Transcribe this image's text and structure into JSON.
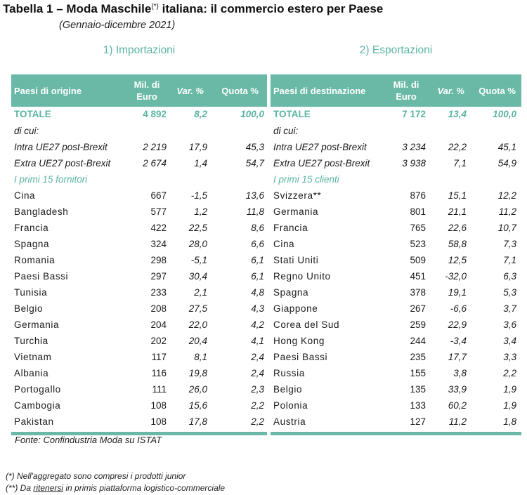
{
  "title": {
    "main": "Tabella 1 – Moda Maschile",
    "sup": "(*)",
    "rest": " italiana: il commercio estero per Paese"
  },
  "subtitle": "(Gennaio-dicembre 2021)",
  "imports": {
    "heading": "1) Importazioni",
    "columns": {
      "country": "Paesi di origine",
      "mil1": "Mil. di",
      "mil2": "Euro",
      "var": "Var. %",
      "quota": "Quota %"
    },
    "total": {
      "label": "TOTALE",
      "mil": "4 892",
      "var": "8,2",
      "quota": "100,0"
    },
    "of_which": "di cui:",
    "groups": [
      {
        "label": "Intra UE27 post-Brexit",
        "mil": "2 219",
        "var": "17,9",
        "quota": "45,3"
      },
      {
        "label": "Extra UE27 post-Brexit",
        "mil": "2 674",
        "var": "1,4",
        "quota": "54,7"
      }
    ],
    "top_label": "I primi 15 fornitori",
    "rows": [
      {
        "country": "Cina",
        "mil": "667",
        "var": "-1,5",
        "quota": "13,6"
      },
      {
        "country": "Bangladesh",
        "mil": "577",
        "var": "1,2",
        "quota": "11,8"
      },
      {
        "country": "Francia",
        "mil": "422",
        "var": "22,5",
        "quota": "8,6"
      },
      {
        "country": "Spagna",
        "mil": "324",
        "var": "28,0",
        "quota": "6,6"
      },
      {
        "country": "Romania",
        "mil": "298",
        "var": "-5,1",
        "quota": "6,1"
      },
      {
        "country": "Paesi  Bassi",
        "mil": "297",
        "var": "30,4",
        "quota": "6,1"
      },
      {
        "country": "Tunisia",
        "mil": "233",
        "var": "2,1",
        "quota": "4,8"
      },
      {
        "country": "Belgio",
        "mil": "208",
        "var": "27,5",
        "quota": "4,3"
      },
      {
        "country": "Germania",
        "mil": "204",
        "var": "22,0",
        "quota": "4,2"
      },
      {
        "country": "Turchia",
        "mil": "202",
        "var": "20,4",
        "quota": "4,1"
      },
      {
        "country": "Vietnam",
        "mil": "117",
        "var": "8,1",
        "quota": "2,4"
      },
      {
        "country": "Albania",
        "mil": "116",
        "var": "19,8",
        "quota": "2,4"
      },
      {
        "country": "Portogallo",
        "mil": "111",
        "var": "26,0",
        "quota": "2,3"
      },
      {
        "country": "Cambogia",
        "mil": "108",
        "var": "15,6",
        "quota": "2,2"
      },
      {
        "country": "Pakistan",
        "mil": "108",
        "var": "17,8",
        "quota": "2,2"
      }
    ]
  },
  "exports": {
    "heading": "2) Esportazioni",
    "columns": {
      "country": "Paesi di destinazione",
      "mil1": "Mil. di",
      "mil2": "Euro",
      "var": "Var. %",
      "quota": "Quota %"
    },
    "total": {
      "label": "TOTALE",
      "mil": "7 172",
      "var": "13,4",
      "quota": "100,0"
    },
    "of_which": "di cui:",
    "groups": [
      {
        "label": "Intra UE27 post-Brexit",
        "mil": "3 234",
        "var": "22,2",
        "quota": "45,1"
      },
      {
        "label": "Extra UE27 post-Brexit",
        "mil": "3 938",
        "var": "7,1",
        "quota": "54,9"
      }
    ],
    "top_label": "I primi 15 clienti",
    "rows": [
      {
        "country": "Svizzera**",
        "mil": "876",
        "var": "15,1",
        "quota": "12,2"
      },
      {
        "country": "Germania",
        "mil": "801",
        "var": "21,1",
        "quota": "11,2"
      },
      {
        "country": "Francia",
        "mil": "765",
        "var": "22,6",
        "quota": "10,7"
      },
      {
        "country": "Cina",
        "mil": "523",
        "var": "58,8",
        "quota": "7,3"
      },
      {
        "country": "Stati Uniti",
        "mil": "509",
        "var": "12,5",
        "quota": "7,1"
      },
      {
        "country": "Regno Unito",
        "mil": "451",
        "var": "-32,0",
        "quota": "6,3"
      },
      {
        "country": "Spagna",
        "mil": "378",
        "var": "19,1",
        "quota": "5,3"
      },
      {
        "country": "Giappone",
        "mil": "267",
        "var": "-6,6",
        "quota": "3,7"
      },
      {
        "country": "Corea del Sud",
        "mil": "259",
        "var": "22,9",
        "quota": "3,6"
      },
      {
        "country": "Hong Kong",
        "mil": "244",
        "var": "-3,4",
        "quota": "3,4"
      },
      {
        "country": "Paesi  Bassi",
        "mil": "235",
        "var": "17,7",
        "quota": "3,3"
      },
      {
        "country": "Russia",
        "mil": "155",
        "var": "3,8",
        "quota": "2,2"
      },
      {
        "country": "Belgio",
        "mil": "135",
        "var": "33,9",
        "quota": "1,9"
      },
      {
        "country": "Polonia",
        "mil": "133",
        "var": "60,2",
        "quota": "1,9"
      },
      {
        "country": "Austria",
        "mil": "127",
        "var": "11,2",
        "quota": "1,8"
      }
    ]
  },
  "source": "Fonte:  Confindustria Moda su ISTAT",
  "notes": {
    "n1": "(*) Nell'aggregato sono compresi i prodotti junior",
    "n2_a": "(**) Da ",
    "n2_b": "ritenersi",
    "n2_c": " in primis piattaforma logistico-commerciale"
  },
  "colors": {
    "accent": "#69b9a6",
    "accent_text": "#5bb5a2"
  }
}
